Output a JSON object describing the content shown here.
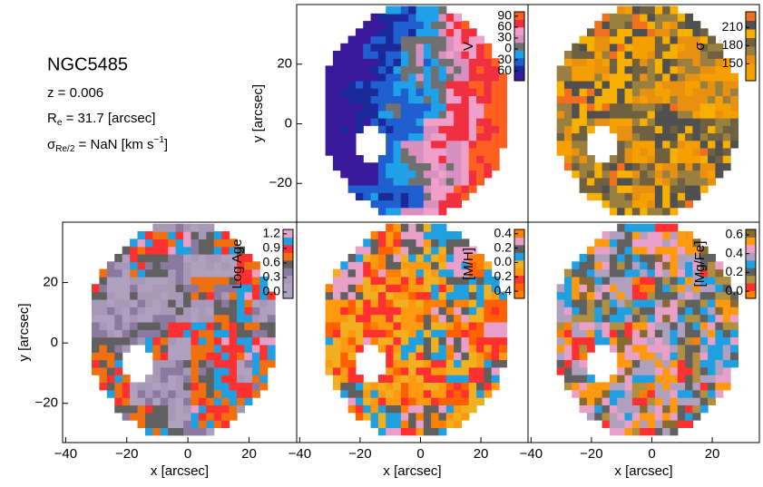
{
  "header": {
    "galaxy": "NGC5485",
    "redshift": "z = 0.006",
    "re_symbol": "R",
    "re_subscript": "e",
    "re_text": " = 31.7 [arcsec]",
    "sigma_symbol": "σ",
    "sigma_subscript": "Re/2",
    "sigma_text": " = NaN [km s",
    "sigma_superscript": "−1",
    "sigma_end": "]"
  },
  "chart_data": [
    {
      "type": "map",
      "colorbar_label": "V",
      "cbar_lim": [
        -87,
        102
      ],
      "cbar_ticks": [
        90,
        60,
        30,
        0,
        {
          "value": -30,
          "label": "30"
        },
        {
          "value": -60,
          "label": "60"
        }
      ],
      "xlim": [
        -41,
        35.6
      ],
      "ylim": [
        -33,
        40
      ],
      "yticks": [
        {
          "value": -20,
          "label": "−20"
        },
        0,
        20
      ],
      "ylabel": "y [arcsec]",
      "colormap": [
        "#3a1a9a",
        "#1a2a9a",
        "#1f5fd0",
        "#20a0e8",
        "#707070",
        "#d890c0",
        "#f0a0c8",
        "#f03040",
        "#ff6020"
      ]
    },
    {
      "type": "map",
      "colorbar_label": "σ",
      "cbar_lim": [
        122,
        236
      ],
      "cbar_ticks": [
        210,
        180,
        150
      ],
      "xlim": [
        -41,
        35.6
      ],
      "ylim": [
        -33,
        40
      ],
      "colormap": [
        "#f5a000",
        "#f5a000",
        "#e89010",
        "#9a8040",
        "#6e6040",
        "#f7b000",
        "#505050",
        "#f07020"
      ]
    },
    {
      "type": "map",
      "colorbar_label": "Log Age",
      "cbar_lim": [
        -0.13,
        1.29
      ],
      "cbar_ticks": [
        1.2,
        0.9,
        0.6,
        0.3,
        {
          "value": 0,
          "label": "0.0"
        }
      ],
      "xlim": [
        -41,
        35.6
      ],
      "ylim": [
        -33,
        40
      ],
      "xticks": [
        {
          "value": -40,
          "label": "−40"
        },
        {
          "value": -20,
          "label": "−20"
        },
        0,
        20
      ],
      "xlabel": "x [arcsec]",
      "yticks": [
        {
          "value": -20,
          "label": "−20"
        },
        0,
        20
      ],
      "ylabel": "y [arcsec]",
      "colormap": [
        "#b0a0c0",
        "#b0a0c0",
        "#a898b8",
        "#8a7aa0",
        "#606060",
        "#f07010",
        "#ff3030",
        "#20a0e0",
        "#e8a0c8"
      ]
    },
    {
      "type": "map",
      "colorbar_label": "[M/H]",
      "cbar_lim": [
        -0.5,
        0.46
      ],
      "cbar_ticks": [
        0.4,
        0.2,
        {
          "value": 0,
          "label": "0.0"
        },
        {
          "value": -0.2,
          "label": "0.2"
        },
        {
          "value": -0.4,
          "label": "0.4"
        }
      ],
      "xlim": [
        -41,
        35.6
      ],
      "ylim": [
        -33,
        40
      ],
      "xticks": [
        {
          "value": -40,
          "label": "−40"
        },
        {
          "value": -20,
          "label": "−20"
        },
        0,
        20
      ],
      "xlabel": "x [arcsec]",
      "colormap": [
        "#ff8000",
        "#ff6000",
        "#ff3030",
        "#ff9a10",
        "#f0b020",
        "#20a0e0",
        "#606060",
        "#e8a0c8",
        "#ff8000"
      ]
    },
    {
      "type": "map",
      "colorbar_label": "[Mg/Fe]",
      "cbar_lim": [
        -0.076,
        0.657
      ],
      "cbar_ticks": [
        0.6,
        0.4,
        0.2,
        {
          "value": 0,
          "label": "0.0"
        }
      ],
      "xlim": [
        -41,
        35.6
      ],
      "ylim": [
        -33,
        40
      ],
      "xticks": [
        {
          "value": -40,
          "label": "−40"
        },
        {
          "value": -20,
          "label": "−20"
        },
        0,
        20
      ],
      "xlabel": "x [arcsec]",
      "colormap": [
        "#ff8000",
        "#ff3030",
        "#b09040",
        "#606060",
        "#20a0e0",
        "#b0a0c0",
        "#e8a0c8",
        "#ff9a10",
        "#8a6a30"
      ]
    }
  ]
}
